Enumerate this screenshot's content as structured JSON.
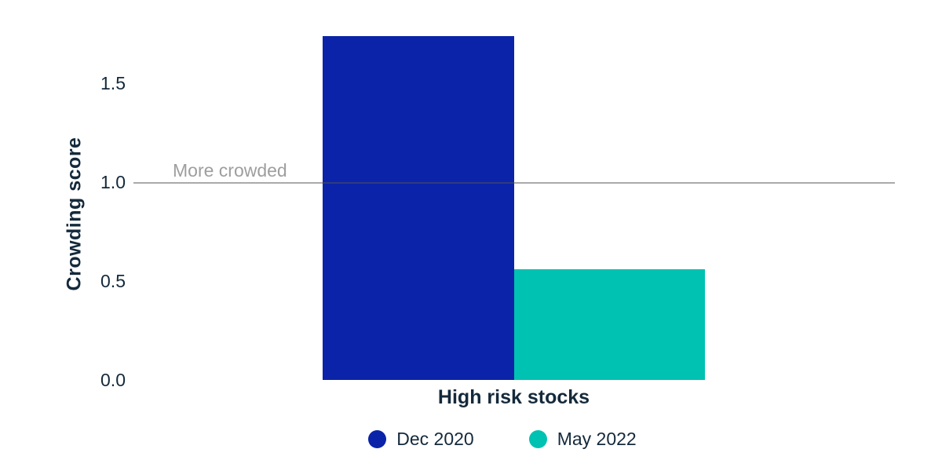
{
  "chart_data": {
    "type": "bar",
    "categories": [
      "High risk stocks"
    ],
    "series": [
      {
        "name": "Dec 2020",
        "values": [
          1.74
        ],
        "color": "#0a23a8"
      },
      {
        "name": "May 2022",
        "values": [
          0.56
        ],
        "color": "#00c2b2"
      }
    ],
    "title": "",
    "xlabel": "High risk stocks",
    "ylabel": "Crowding score",
    "yticks": [
      "0.0",
      "0.5",
      "1.0",
      "1.5"
    ],
    "ylim": [
      0,
      1.75
    ],
    "grid": false,
    "legend_position": "bottom",
    "reference_line": {
      "value": 1.0,
      "label": "More crowded"
    }
  },
  "colors": {
    "text_dark": "#14293b",
    "annotation_gray": "#9e9e9e",
    "reference_line_gray": "#aaaaaa",
    "background": "#ffffff"
  }
}
